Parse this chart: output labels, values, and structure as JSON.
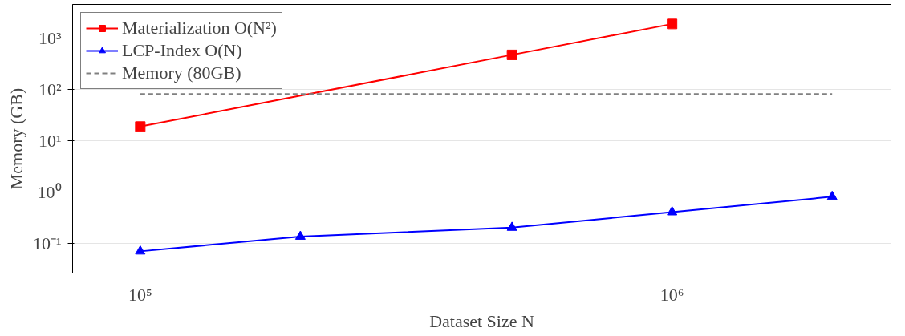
{
  "chart_data": {
    "type": "line",
    "xlabel": "Dataset Size N",
    "ylabel": "Memory (GB)",
    "log": "xy",
    "grid": true,
    "legend": "top left",
    "xlim": [
      74600,
      2580000
    ],
    "ylim": [
      0.026,
      4470
    ],
    "xticks": [
      {
        "value": 100000,
        "label": "10⁵"
      },
      {
        "value": 1000000,
        "label": "10⁶"
      }
    ],
    "yticks": [
      {
        "value": 0.1,
        "label": "10⁻¹"
      },
      {
        "value": 1,
        "label": "10⁰"
      },
      {
        "value": 10,
        "label": "10¹"
      },
      {
        "value": 100,
        "label": "10²"
      },
      {
        "value": 1000,
        "label": "10³"
      }
    ],
    "series": [
      {
        "name": "Materialization O(N²)",
        "color": "#ff0000",
        "marker": "square",
        "line_style": "solid",
        "x": [
          100000,
          500000,
          1000000
        ],
        "values": [
          18.6,
          465,
          1860
        ]
      },
      {
        "name": "LCP-Index O(N)",
        "color": "#0000ff",
        "marker": "triangle",
        "line_style": "solid",
        "x": [
          100000,
          200000,
          500000,
          1000000,
          2000000
        ],
        "values": [
          0.069,
          0.134,
          0.2,
          0.4,
          0.8
        ]
      },
      {
        "name": "Memory (80GB)",
        "color": "#808080",
        "marker": "none",
        "line_style": "dashed",
        "x": [
          100000,
          2000000
        ],
        "values": [
          80,
          80
        ]
      }
    ]
  }
}
